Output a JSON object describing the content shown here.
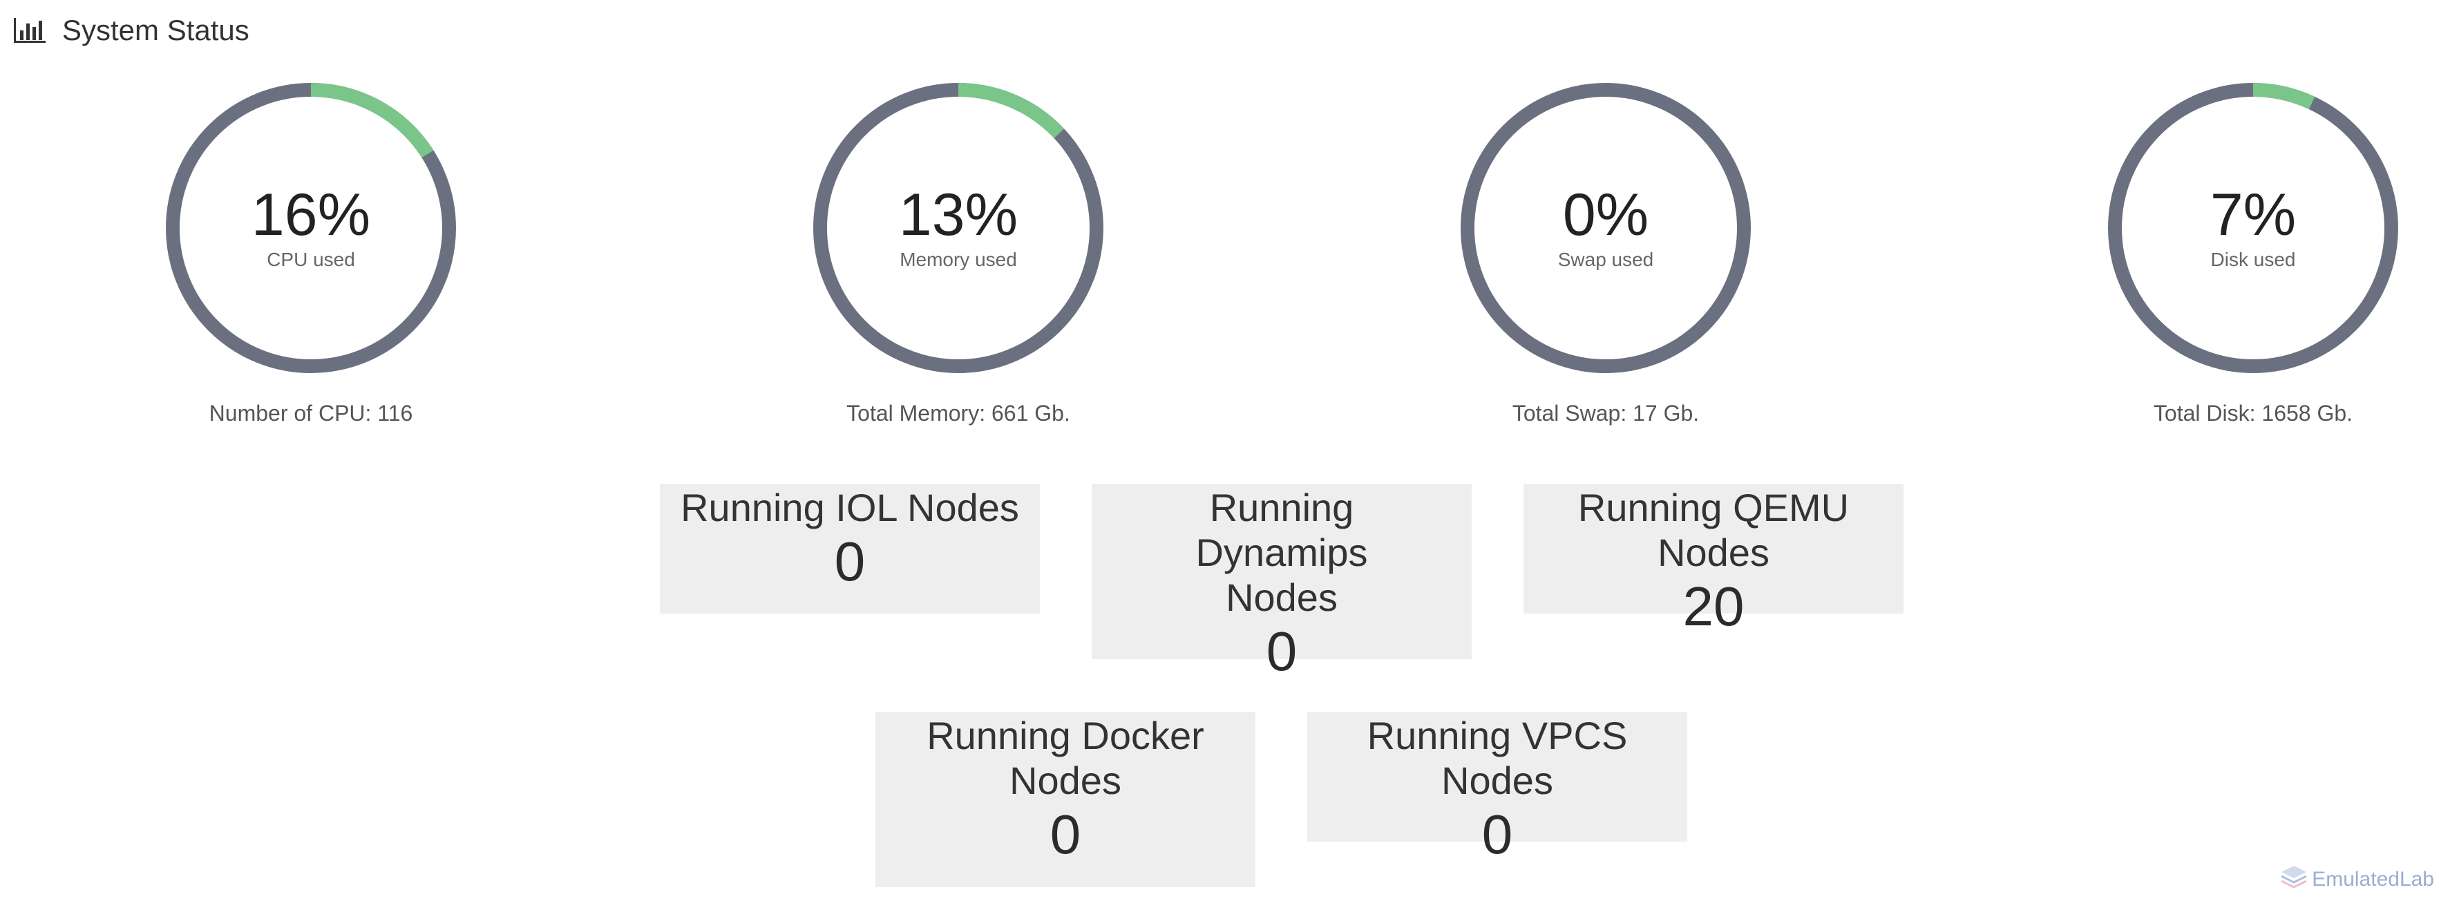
{
  "header": {
    "title": "System Status",
    "icon": "bar-chart-icon"
  },
  "gauges": [
    {
      "id": "cpu",
      "percent_label": "16%",
      "value": 16,
      "label": "CPU used",
      "total": "Number of CPU: 116"
    },
    {
      "id": "memory",
      "percent_label": "13%",
      "value": 13,
      "label": "Memory used",
      "total": "Total Memory: 661 Gb."
    },
    {
      "id": "swap",
      "percent_label": "0%",
      "value": 0,
      "label": "Swap used",
      "total": "Total Swap: 17 Gb."
    },
    {
      "id": "disk",
      "percent_label": "7%",
      "value": 7,
      "label": "Disk used",
      "total": "Total Disk: 1658 Gb."
    }
  ],
  "tiles": [
    {
      "id": "iol",
      "title": "Running IOL Nodes",
      "count": "0"
    },
    {
      "id": "dynamips",
      "title": "Running Dynamips Nodes",
      "count": "0"
    },
    {
      "id": "qemu",
      "title": "Running QEMU Nodes",
      "count": "20"
    },
    {
      "id": "docker",
      "title": "Running Docker Nodes",
      "count": "0"
    },
    {
      "id": "vpcs",
      "title": "Running VPCS Nodes",
      "count": "0"
    }
  ],
  "watermark": "EmulatedLab",
  "colors": {
    "gauge_track": "#6b7080",
    "gauge_fill": "#7ac58a",
    "tile_bg": "#eeeeee"
  }
}
